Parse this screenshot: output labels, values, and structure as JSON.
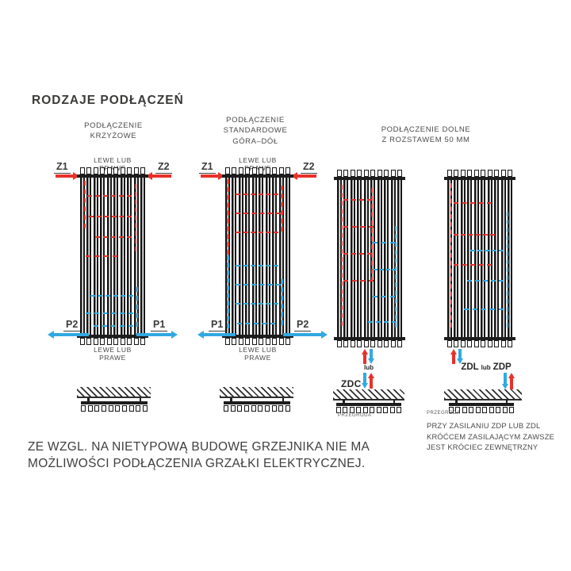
{
  "title": "RODZAJE PODŁĄCZEŃ",
  "colors": {
    "supply_red": "#e8312a",
    "return_blue": "#31a9e1",
    "ink": "#3b3b3a",
    "radiator_black": "#161616"
  },
  "labels": {
    "lewe_lub_prawe": "LEWE LUB PRAWE"
  },
  "ports": {
    "z1": "Z1",
    "z2": "Z2",
    "p1": "P1",
    "p2": "P2"
  },
  "sections": {
    "krzyzowe": {
      "header1": "PODŁĄCZENIE",
      "header2": "KRZYŻOWE"
    },
    "standardowe": {
      "header1": "PODŁĄCZENIE",
      "header2": "STANDARDOWE",
      "header3": "GÓRA–DÓŁ"
    },
    "dolne": {
      "header1": "PODŁĄCZENIE DOLNE",
      "header2": "Z ROZSTAWEM 50 MM",
      "zdc": "ZDC",
      "lub": "lub",
      "zdl": "ZDL",
      "zdp": "ZDP",
      "przegroda": "PRZEGRODA",
      "note1": "PRZY ZASILANIU ZDP LUB ZDL",
      "note2": "KRÓĆCEM ZASILAJĄCYM ZAWSZE",
      "note3": "JEST KRÓCIEC ZEWNĘTRZNY"
    }
  },
  "footer": {
    "line1": "ZE WZGL. NA NIETYPOWĄ BUDOWĘ GRZEJNIKA NIE MA",
    "line2": "MOŻLIWOŚCI PODŁĄCZENIA GRZAŁKI ELEKTRYCZNEJ."
  }
}
